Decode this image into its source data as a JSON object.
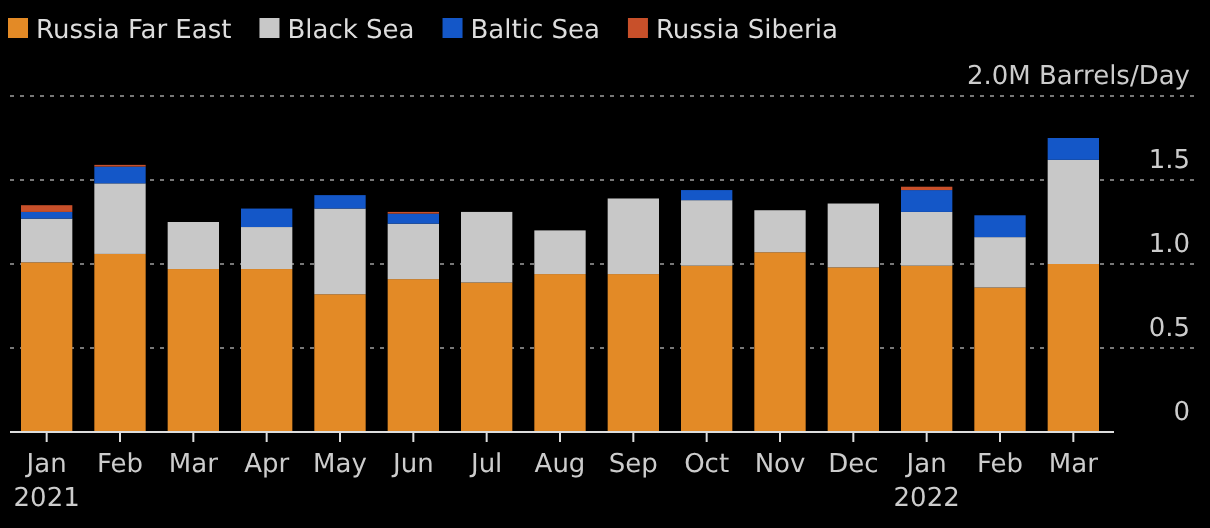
{
  "chart_data": {
    "type": "bar",
    "stacked": true,
    "legend": "top left",
    "grid": "y",
    "ylim": [
      0,
      2
    ],
    "yticks": [
      0,
      0.5,
      {
        "value": 1,
        "label": "1.0"
      },
      1.5,
      {
        "value": 2.0,
        "label": "2.0M Barrels/Day"
      }
    ],
    "categories": [
      "Jan\n2021",
      "Feb",
      "Mar",
      "Apr",
      "May",
      "Jun",
      "Jul",
      "Aug",
      "Sep",
      "Oct",
      "Nov",
      "Dec",
      "Jan\n2022",
      "Feb",
      "Mar"
    ],
    "series": [
      {
        "name": "Russia Far East",
        "color": "#e38a26",
        "values": [
          1.01,
          1.06,
          0.97,
          0.97,
          0.82,
          0.91,
          0.89,
          0.94,
          0.94,
          0.99,
          1.07,
          0.98,
          0.99,
          0.86,
          1.0
        ]
      },
      {
        "name": "Black Sea",
        "color": "#c8c8c8",
        "values": [
          0.26,
          0.42,
          0.28,
          0.25,
          0.51,
          0.33,
          0.42,
          0.26,
          0.45,
          0.39,
          0.25,
          0.38,
          0.32,
          0.3,
          0.62
        ]
      },
      {
        "name": "Baltic Sea",
        "color": "#1457c8",
        "values": [
          0.04,
          0.1,
          null,
          0.11,
          0.08,
          0.06,
          null,
          null,
          null,
          0.06,
          null,
          null,
          0.13,
          0.13,
          0.13
        ]
      },
      {
        "name": "Russia Siberia",
        "color": "#c8502a",
        "values": [
          0.04,
          0.01,
          null,
          null,
          null,
          0.01,
          null,
          null,
          null,
          null,
          null,
          null,
          0.02,
          null,
          null
        ]
      }
    ]
  }
}
